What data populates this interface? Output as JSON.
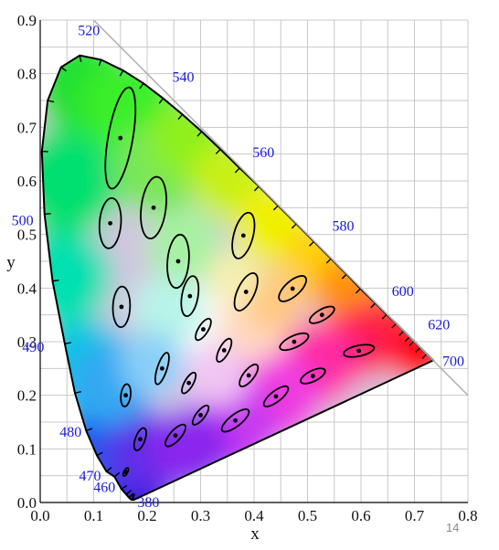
{
  "page_number": "14",
  "chart_data": {
    "type": "scatter",
    "xlabel": "x",
    "ylabel": "y",
    "xlim": [
      0.0,
      0.8
    ],
    "ylim": [
      0.0,
      0.9
    ],
    "grid": true,
    "x_ticks": [
      "0.0",
      "0.1",
      "0.2",
      "0.3",
      "0.4",
      "0.5",
      "0.6",
      "0.7",
      "0.8"
    ],
    "y_ticks": [
      "0.0",
      "0.1",
      "0.2",
      "0.3",
      "0.4",
      "0.5",
      "0.6",
      "0.7",
      "0.8",
      "0.9"
    ],
    "spectral_locus": [
      [
        0.175,
        0.005
      ],
      [
        0.174,
        0.005
      ],
      [
        0.173,
        0.005
      ],
      [
        0.171,
        0.005
      ],
      [
        0.166,
        0.009
      ],
      [
        0.161,
        0.015
      ],
      [
        0.152,
        0.025
      ],
      [
        0.139,
        0.048
      ],
      [
        0.124,
        0.058
      ],
      [
        0.106,
        0.088
      ],
      [
        0.086,
        0.134
      ],
      [
        0.065,
        0.204
      ],
      [
        0.046,
        0.296
      ],
      [
        0.023,
        0.413
      ],
      [
        0.008,
        0.538
      ],
      [
        0.003,
        0.655
      ],
      [
        0.014,
        0.75
      ],
      [
        0.039,
        0.812
      ],
      [
        0.074,
        0.834
      ],
      [
        0.114,
        0.826
      ],
      [
        0.155,
        0.806
      ],
      [
        0.193,
        0.782
      ],
      [
        0.23,
        0.754
      ],
      [
        0.266,
        0.724
      ],
      [
        0.302,
        0.692
      ],
      [
        0.337,
        0.659
      ],
      [
        0.373,
        0.624
      ],
      [
        0.409,
        0.59
      ],
      [
        0.445,
        0.554
      ],
      [
        0.479,
        0.52
      ],
      [
        0.512,
        0.487
      ],
      [
        0.544,
        0.455
      ],
      [
        0.573,
        0.426
      ],
      [
        0.599,
        0.399
      ],
      [
        0.627,
        0.372
      ],
      [
        0.648,
        0.351
      ],
      [
        0.666,
        0.334
      ],
      [
        0.68,
        0.32
      ],
      [
        0.691,
        0.309
      ],
      [
        0.699,
        0.301
      ],
      [
        0.711,
        0.289
      ],
      [
        0.723,
        0.277
      ],
      [
        0.735,
        0.265
      ]
    ],
    "wavelength_labels": [
      {
        "text": "380",
        "x": 0.175,
        "y": 0.005
      },
      {
        "text": "460",
        "x": 0.144,
        "y": 0.03
      },
      {
        "text": "470",
        "x": 0.124,
        "y": 0.058
      },
      {
        "text": "480",
        "x": 0.091,
        "y": 0.133
      },
      {
        "text": "490",
        "x": 0.045,
        "y": 0.295
      },
      {
        "text": "500",
        "x": 0.008,
        "y": 0.538
      },
      {
        "text": "520",
        "x": 0.074,
        "y": 0.834
      },
      {
        "text": "540",
        "x": 0.23,
        "y": 0.754
      },
      {
        "text": "560",
        "x": 0.373,
        "y": 0.624
      },
      {
        "text": "580",
        "x": 0.512,
        "y": 0.487
      },
      {
        "text": "600",
        "x": 0.627,
        "y": 0.372
      },
      {
        "text": "620",
        "x": 0.691,
        "y": 0.309
      },
      {
        "text": "700",
        "x": 0.735,
        "y": 0.265
      }
    ],
    "white_point": [
      0.31,
      0.32
    ],
    "reference_line": [
      [
        0.1,
        0.9
      ],
      [
        0.8,
        0.2
      ]
    ],
    "ellipses": [
      {
        "x": 0.16,
        "y": 0.057,
        "a": 0.0085,
        "b": 0.0035,
        "angle": 62
      },
      {
        "x": 0.187,
        "y": 0.118,
        "a": 0.022,
        "b": 0.009,
        "angle": 70
      },
      {
        "x": 0.253,
        "y": 0.125,
        "a": 0.026,
        "b": 0.01,
        "angle": 48
      },
      {
        "x": 0.15,
        "y": 0.68,
        "a": 0.096,
        "b": 0.023,
        "angle": 80
      },
      {
        "x": 0.131,
        "y": 0.521,
        "a": 0.047,
        "b": 0.02,
        "angle": 86
      },
      {
        "x": 0.212,
        "y": 0.55,
        "a": 0.058,
        "b": 0.023,
        "angle": 83
      },
      {
        "x": 0.258,
        "y": 0.45,
        "a": 0.05,
        "b": 0.02,
        "angle": 85
      },
      {
        "x": 0.152,
        "y": 0.365,
        "a": 0.038,
        "b": 0.016,
        "angle": 88
      },
      {
        "x": 0.28,
        "y": 0.385,
        "a": 0.038,
        "b": 0.015,
        "angle": 80
      },
      {
        "x": 0.38,
        "y": 0.498,
        "a": 0.044,
        "b": 0.018,
        "angle": 75
      },
      {
        "x": 0.16,
        "y": 0.2,
        "a": 0.021,
        "b": 0.009,
        "angle": 83
      },
      {
        "x": 0.228,
        "y": 0.25,
        "a": 0.031,
        "b": 0.009,
        "angle": 72
      },
      {
        "x": 0.305,
        "y": 0.323,
        "a": 0.023,
        "b": 0.009,
        "angle": 58
      },
      {
        "x": 0.385,
        "y": 0.393,
        "a": 0.038,
        "b": 0.016,
        "angle": 65
      },
      {
        "x": 0.472,
        "y": 0.399,
        "a": 0.032,
        "b": 0.014,
        "angle": 42
      },
      {
        "x": 0.527,
        "y": 0.35,
        "a": 0.026,
        "b": 0.01,
        "angle": 30
      },
      {
        "x": 0.475,
        "y": 0.3,
        "a": 0.029,
        "b": 0.011,
        "angle": 25
      },
      {
        "x": 0.51,
        "y": 0.236,
        "a": 0.025,
        "b": 0.01,
        "angle": 26
      },
      {
        "x": 0.596,
        "y": 0.283,
        "a": 0.029,
        "b": 0.01,
        "angle": 12
      },
      {
        "x": 0.344,
        "y": 0.284,
        "a": 0.024,
        "b": 0.009,
        "angle": 62
      },
      {
        "x": 0.39,
        "y": 0.237,
        "a": 0.025,
        "b": 0.01,
        "angle": 52
      },
      {
        "x": 0.441,
        "y": 0.198,
        "a": 0.028,
        "b": 0.01,
        "angle": 38
      },
      {
        "x": 0.278,
        "y": 0.223,
        "a": 0.022,
        "b": 0.008,
        "angle": 60
      },
      {
        "x": 0.3,
        "y": 0.163,
        "a": 0.022,
        "b": 0.008,
        "angle": 52
      },
      {
        "x": 0.365,
        "y": 0.153,
        "a": 0.031,
        "b": 0.011,
        "angle": 38
      }
    ]
  }
}
